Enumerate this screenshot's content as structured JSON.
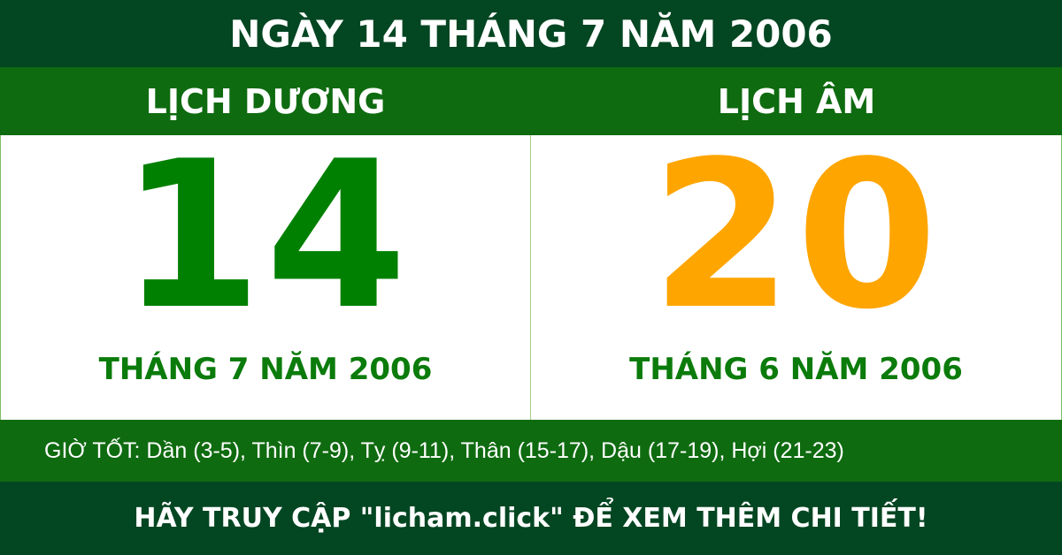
{
  "title": "NGÀY 14 THÁNG 7 NĂM 2006",
  "solar": {
    "label": "LỊCH DƯƠNG",
    "day": "14",
    "month_year": "THÁNG 7 NĂM 2006"
  },
  "lunar": {
    "label": "LỊCH ÂM",
    "day": "20",
    "month_year": "THÁNG 6 NĂM 2006"
  },
  "good_hours": "GIỜ TỐT: Dần (3-5), Thìn (7-9), Tỵ (9-11), Thân (15-17), Dậu (17-19), Hợi (21-23)",
  "footer": "HÃY TRUY CẬP \"licham.click\" ĐỂ XEM THÊM CHI TIẾT!",
  "colors": {
    "dark_green": "#034622",
    "band_green": "#0f6b10",
    "solar_day": "#008000",
    "lunar_day": "#ffa500"
  }
}
